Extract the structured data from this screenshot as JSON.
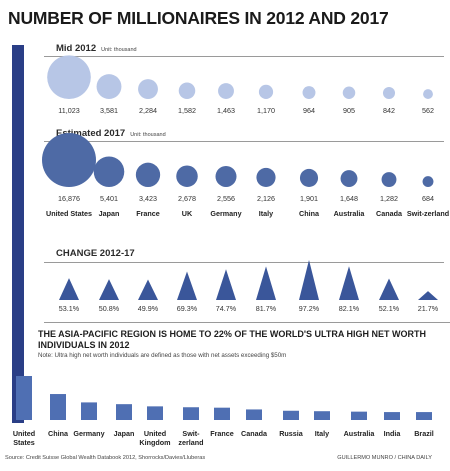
{
  "title": "NUMBER OF MILLIONAIRES IN 2012 AND 2017",
  "mid2012": {
    "label": "Mid 2012",
    "unit": "Unit: thousand"
  },
  "est2017": {
    "label": "Estimated 2017",
    "unit": "Unit: thousand"
  },
  "change": {
    "label": "CHANGE 2012-17"
  },
  "asia": {
    "headline": "THE ASIA-PACIFIC REGION IS HOME TO 22% OF THE WORLD'S ULTRA HIGH NET WORTH INDIVIDUALS IN 2012",
    "note": "Note: Ultra high net worth individuals are defined as those with net assets exceeding $50m"
  },
  "source": "Source: Credit Suisse Global Wealth Databook 2012, Shorrocks/Davies/Lluberas",
  "credit": "GUILLERMO MUNRO / CHINA DAILY",
  "colors": {
    "bubble2012": "#b7c6e6",
    "bubble2017": "#4e6aa5",
    "triangle": "#3a569a",
    "bar": "#4f6fb3",
    "sidebar": "#2a3e86"
  },
  "chart_data": [
    {
      "type": "bubble",
      "title": "Mid 2012",
      "unit": "Unit: thousand",
      "categories": [
        "United States",
        "Japan",
        "France",
        "UK",
        "Germany",
        "Italy",
        "China",
        "Australia",
        "Canada",
        "Switzerland"
      ],
      "values": [
        11023,
        3581,
        2284,
        1582,
        1463,
        1170,
        964,
        905,
        842,
        562
      ],
      "labels": [
        "11,023",
        "3,581",
        "2,284",
        "1,582",
        "1,463",
        "1,170",
        "964",
        "905",
        "842",
        "562"
      ]
    },
    {
      "type": "bubble",
      "title": "Estimated 2017",
      "unit": "Unit: thousand",
      "categories": [
        "United States",
        "Japan",
        "France",
        "UK",
        "Germany",
        "Italy",
        "China",
        "Australia",
        "Canada",
        "Switzerland"
      ],
      "category_labels": [
        "United States",
        "Japan",
        "France",
        "UK",
        "Germany",
        "Italy",
        "China",
        "Australia",
        "Canada",
        "Swit-zerland"
      ],
      "values": [
        16876,
        5401,
        3423,
        2678,
        2556,
        2126,
        1901,
        1648,
        1282,
        684
      ],
      "labels": [
        "16,876",
        "5,401",
        "3,423",
        "2,678",
        "2,556",
        "2,126",
        "1,901",
        "1,648",
        "1,282",
        "684"
      ]
    },
    {
      "type": "bar",
      "title": "CHANGE 2012-17",
      "categories": [
        "United States",
        "Japan",
        "France",
        "UK",
        "Germany",
        "Italy",
        "China",
        "Australia",
        "Canada",
        "Switzerland"
      ],
      "values": [
        53.1,
        50.8,
        49.9,
        69.3,
        74.7,
        81.7,
        97.2,
        82.1,
        52.1,
        21.7
      ],
      "labels": [
        "53.1%",
        "50.8%",
        "49.9%",
        "69.3%",
        "74.7%",
        "81.7%",
        "97.2%",
        "82.1%",
        "52.1%",
        "21.7%"
      ]
    },
    {
      "type": "bar",
      "title": "THE ASIA-PACIFIC REGION IS HOME TO 22% OF THE WORLD'S ULTRA HIGH NET WORTH INDIVIDUALS IN 2012",
      "categories": [
        "United States",
        "China",
        "Germany",
        "Japan",
        "United Kingdom",
        "Switzerland",
        "France",
        "Canada",
        "Russia",
        "Italy",
        "Australia",
        "India",
        "Brazil"
      ],
      "category_labels": [
        "United States",
        "China",
        "Germany",
        "Japan",
        "United Kingdom",
        "Swit-zerland",
        "France",
        "Canada",
        "Russia",
        "Italy",
        "Australia",
        "India",
        "Brazil"
      ],
      "values": [
        100,
        59,
        40,
        36,
        31,
        29,
        28,
        24,
        21,
        20,
        19,
        18,
        18
      ]
    }
  ]
}
